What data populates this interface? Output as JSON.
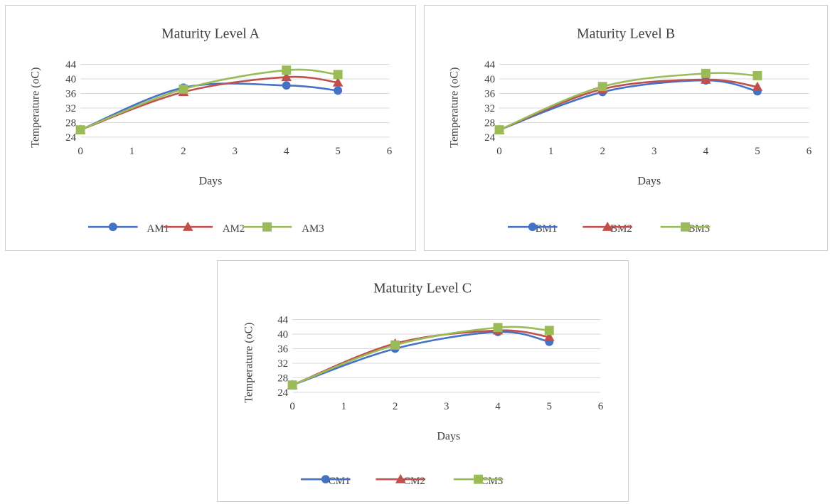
{
  "charts": [
    {
      "title": "Maturity Level A",
      "xlabel": "Days",
      "ylabel": "Temperature (oC)",
      "legend": [
        "AM1",
        "AM2",
        "AM3"
      ]
    },
    {
      "title": "Maturity Level B",
      "xlabel": "Days",
      "ylabel": "Temperature (oC)",
      "legend": [
        "BM1",
        "BM2",
        "BM3"
      ]
    },
    {
      "title": "Maturity Level C",
      "xlabel": "Days",
      "ylabel": "Temperature (oC)",
      "legend": [
        "CM1",
        "CM2",
        "CM3"
      ]
    }
  ],
  "chart_data": [
    {
      "type": "line",
      "title": "Maturity Level A",
      "xlabel": "Days",
      "ylabel": "Temperature (oC)",
      "xlim": [
        0,
        6
      ],
      "ylim": [
        24,
        44
      ],
      "x_ticks": [
        0,
        1,
        2,
        3,
        4,
        5,
        6
      ],
      "y_ticks": [
        24,
        28,
        32,
        36,
        40,
        44
      ],
      "grid": "horizontal",
      "legend_position": "bottom",
      "smoothed": true,
      "series": [
        {
          "name": "AM1",
          "x": [
            0,
            2,
            4,
            5
          ],
          "values": [
            26,
            37.6,
            38.2,
            36.8
          ],
          "color": "#4472c4",
          "marker": "circle"
        },
        {
          "name": "AM2",
          "x": [
            0,
            2,
            4,
            5
          ],
          "values": [
            26,
            36.4,
            40.5,
            39.0
          ],
          "color": "#c0504d",
          "marker": "triangle"
        },
        {
          "name": "AM3",
          "x": [
            0,
            2,
            4,
            5
          ],
          "values": [
            26,
            37.2,
            42.4,
            41.2
          ],
          "color": "#9bbb59",
          "marker": "square"
        }
      ]
    },
    {
      "type": "line",
      "title": "Maturity Level B",
      "xlabel": "Days",
      "ylabel": "Temperature (oC)",
      "xlim": [
        0,
        6
      ],
      "ylim": [
        24,
        44
      ],
      "x_ticks": [
        0,
        1,
        2,
        3,
        4,
        5,
        6
      ],
      "y_ticks": [
        24,
        28,
        32,
        36,
        40,
        44
      ],
      "grid": "horizontal",
      "legend_position": "bottom",
      "smoothed": true,
      "series": [
        {
          "name": "BM1",
          "x": [
            0,
            2,
            4,
            5
          ],
          "values": [
            26,
            36.4,
            39.6,
            36.6
          ],
          "color": "#4472c4",
          "marker": "circle"
        },
        {
          "name": "BM2",
          "x": [
            0,
            2,
            4,
            5
          ],
          "values": [
            26,
            37.2,
            39.8,
            37.8
          ],
          "color": "#c0504d",
          "marker": "triangle"
        },
        {
          "name": "BM3",
          "x": [
            0,
            2,
            4,
            5
          ],
          "values": [
            26,
            37.9,
            41.5,
            40.9
          ],
          "color": "#9bbb59",
          "marker": "square"
        }
      ]
    },
    {
      "type": "line",
      "title": "Maturity Level C",
      "xlabel": "Days",
      "ylabel": "Temperature (oC)",
      "xlim": [
        0,
        6
      ],
      "ylim": [
        24,
        44
      ],
      "x_ticks": [
        0,
        1,
        2,
        3,
        4,
        5,
        6
      ],
      "y_ticks": [
        24,
        28,
        32,
        36,
        40,
        44
      ],
      "grid": "horizontal",
      "legend_position": "bottom",
      "smoothed": true,
      "series": [
        {
          "name": "CM1",
          "x": [
            0,
            2,
            4,
            5
          ],
          "values": [
            26,
            36.0,
            40.6,
            37.9
          ],
          "color": "#4472c4",
          "marker": "circle"
        },
        {
          "name": "CM2",
          "x": [
            0,
            2,
            4,
            5
          ],
          "values": [
            26,
            37.4,
            41.0,
            39.2
          ],
          "color": "#c0504d",
          "marker": "triangle"
        },
        {
          "name": "CM3",
          "x": [
            0,
            2,
            4,
            5
          ],
          "values": [
            26,
            37.0,
            41.8,
            41.0
          ],
          "color": "#9bbb59",
          "marker": "square"
        }
      ]
    }
  ]
}
